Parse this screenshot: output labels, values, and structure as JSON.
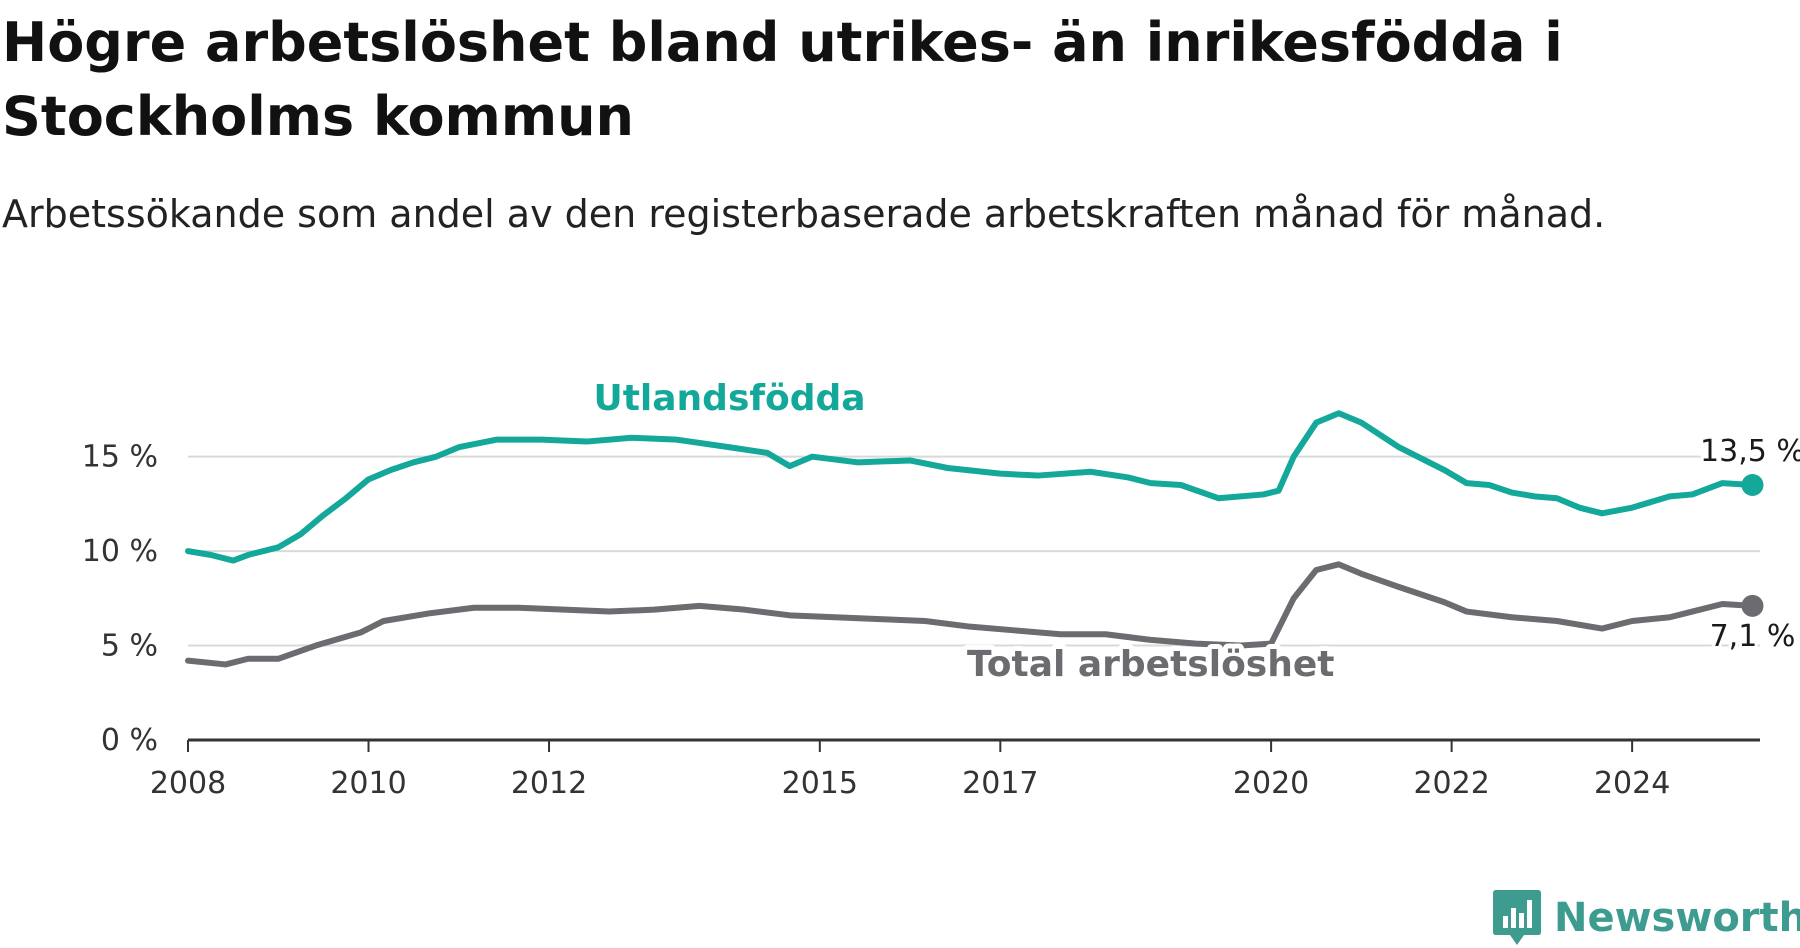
{
  "title": "Högre arbetslöshet bland utrikes- än inrikesfödda i Stockholms kommun",
  "subtitle": "Arbetssökande som andel av den registerbaserade arbetskraften månad för månad.",
  "brand": {
    "name": "Newsworthy",
    "logo_icon": "bar-chart-badge-icon",
    "color": "#3d9b8f"
  },
  "colors": {
    "foreign_born": "#13a89a",
    "total": "#6b6b70",
    "grid": "#d9d9d9",
    "axis": "#333333"
  },
  "chart_data": {
    "type": "line",
    "title": "Högre arbetslöshet bland utrikes- än inrikesfödda i Stockholms kommun",
    "subtitle": "Arbetssökande som andel av den registerbaserade arbetskraften månad för månad.",
    "xlabel": "",
    "ylabel": "",
    "xlim": [
      "2008-01",
      "2025-06"
    ],
    "ylim": [
      0,
      18
    ],
    "x_ticks": [
      "2008",
      "2010",
      "2012",
      "2015",
      "2017",
      "2020",
      "2022",
      "2024"
    ],
    "y_ticks": [
      "0 %",
      "5 %",
      "10 %",
      "15 %"
    ],
    "grid": "horizontal",
    "legend": "inline labels",
    "series": [
      {
        "name": "Utlandsfödda",
        "end_label": "13,5 %",
        "points": [
          [
            "2008-01",
            10.0
          ],
          [
            "2008-04",
            9.8
          ],
          [
            "2008-07",
            9.5
          ],
          [
            "2008-09",
            9.8
          ],
          [
            "2009-01",
            10.2
          ],
          [
            "2009-04",
            10.9
          ],
          [
            "2009-07",
            11.9
          ],
          [
            "2009-10",
            12.8
          ],
          [
            "2010-01",
            13.8
          ],
          [
            "2010-04",
            14.3
          ],
          [
            "2010-07",
            14.7
          ],
          [
            "2010-10",
            15.0
          ],
          [
            "2011-01",
            15.5
          ],
          [
            "2011-06",
            15.9
          ],
          [
            "2011-12",
            15.9
          ],
          [
            "2012-06",
            15.8
          ],
          [
            "2012-12",
            16.0
          ],
          [
            "2013-06",
            15.9
          ],
          [
            "2014-01",
            15.5
          ],
          [
            "2014-06",
            15.2
          ],
          [
            "2014-09",
            14.5
          ],
          [
            "2014-12",
            15.0
          ],
          [
            "2015-06",
            14.7
          ],
          [
            "2016-01",
            14.8
          ],
          [
            "2016-06",
            14.4
          ],
          [
            "2017-01",
            14.1
          ],
          [
            "2017-06",
            14.0
          ],
          [
            "2018-01",
            14.2
          ],
          [
            "2018-06",
            13.9
          ],
          [
            "2018-09",
            13.6
          ],
          [
            "2019-01",
            13.5
          ],
          [
            "2019-06",
            12.8
          ],
          [
            "2019-12",
            13.0
          ],
          [
            "2020-02",
            13.2
          ],
          [
            "2020-04",
            15.0
          ],
          [
            "2020-07",
            16.8
          ],
          [
            "2020-10",
            17.3
          ],
          [
            "2021-01",
            16.8
          ],
          [
            "2021-06",
            15.5
          ],
          [
            "2021-12",
            14.3
          ],
          [
            "2022-03",
            13.6
          ],
          [
            "2022-06",
            13.5
          ],
          [
            "2022-09",
            13.1
          ],
          [
            "2022-12",
            12.9
          ],
          [
            "2023-03",
            12.8
          ],
          [
            "2023-06",
            12.3
          ],
          [
            "2023-09",
            12.0
          ],
          [
            "2024-01",
            12.3
          ],
          [
            "2024-06",
            12.9
          ],
          [
            "2024-09",
            13.0
          ],
          [
            "2025-01",
            13.6
          ],
          [
            "2025-05",
            13.5
          ]
        ]
      },
      {
        "name": "Total arbetslöshet",
        "end_label": "7,1 %",
        "points": [
          [
            "2008-01",
            4.2
          ],
          [
            "2008-06",
            4.0
          ],
          [
            "2008-09",
            4.3
          ],
          [
            "2009-01",
            4.3
          ],
          [
            "2009-06",
            5.0
          ],
          [
            "2009-12",
            5.7
          ],
          [
            "2010-03",
            6.3
          ],
          [
            "2010-09",
            6.7
          ],
          [
            "2011-03",
            7.0
          ],
          [
            "2011-09",
            7.0
          ],
          [
            "2012-03",
            6.9
          ],
          [
            "2012-09",
            6.8
          ],
          [
            "2013-03",
            6.9
          ],
          [
            "2013-09",
            7.1
          ],
          [
            "2014-03",
            6.9
          ],
          [
            "2014-09",
            6.6
          ],
          [
            "2015-03",
            6.5
          ],
          [
            "2015-09",
            6.4
          ],
          [
            "2016-03",
            6.3
          ],
          [
            "2016-09",
            6.0
          ],
          [
            "2017-03",
            5.8
          ],
          [
            "2017-09",
            5.6
          ],
          [
            "2018-03",
            5.6
          ],
          [
            "2018-09",
            5.3
          ],
          [
            "2019-03",
            5.1
          ],
          [
            "2019-09",
            5.0
          ],
          [
            "2020-01",
            5.1
          ],
          [
            "2020-04",
            7.5
          ],
          [
            "2020-07",
            9.0
          ],
          [
            "2020-10",
            9.3
          ],
          [
            "2021-01",
            8.8
          ],
          [
            "2021-06",
            8.1
          ],
          [
            "2021-12",
            7.3
          ],
          [
            "2022-03",
            6.8
          ],
          [
            "2022-09",
            6.5
          ],
          [
            "2023-03",
            6.3
          ],
          [
            "2023-09",
            5.9
          ],
          [
            "2024-01",
            6.3
          ],
          [
            "2024-06",
            6.5
          ],
          [
            "2024-09",
            6.8
          ],
          [
            "2025-01",
            7.2
          ],
          [
            "2025-05",
            7.1
          ]
        ]
      }
    ]
  }
}
